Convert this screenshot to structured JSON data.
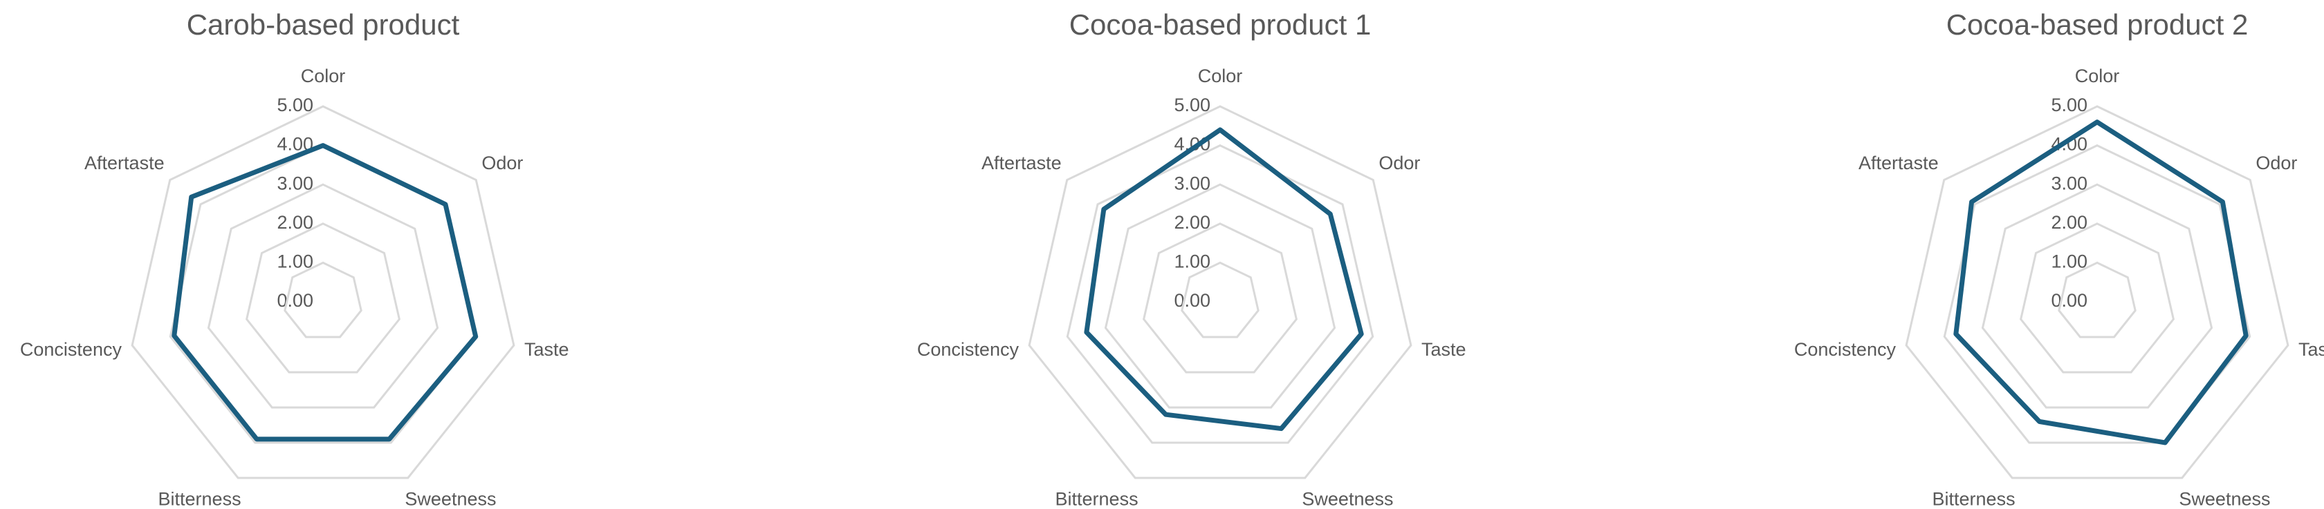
{
  "chart_data": [
    {
      "type": "radar",
      "title": "Carob-based product",
      "categories": [
        "Color",
        "Odor",
        "Taste",
        "Sweetness",
        "Bitterness",
        "Concistency",
        "Aftertaste"
      ],
      "values": [
        4.0,
        4.0,
        4.0,
        3.9,
        3.9,
        3.9,
        4.3
      ],
      "color": "#1b5e80",
      "ylim": [
        0,
        5
      ],
      "yticks": [
        {
          "value": 0,
          "label": "0.00"
        },
        {
          "value": 1,
          "label": "1.00"
        },
        {
          "value": 2,
          "label": "2.00"
        },
        {
          "value": 3,
          "label": "3.00"
        },
        {
          "value": 4,
          "label": "4.00"
        },
        {
          "value": 5,
          "label": "5.00"
        }
      ]
    },
    {
      "type": "radar",
      "title": "Cocoa-based product 1",
      "categories": [
        "Color",
        "Odor",
        "Taste",
        "Sweetness",
        "Bitterness",
        "Concistency",
        "Aftertaste"
      ],
      "values": [
        4.4,
        3.6,
        3.7,
        3.6,
        3.2,
        3.5,
        3.8
      ],
      "color": "#1b5e80",
      "ylim": [
        0,
        5
      ],
      "yticks": [
        {
          "value": 0,
          "label": "0.00"
        },
        {
          "value": 1,
          "label": "1.00"
        },
        {
          "value": 2,
          "label": "2.00"
        },
        {
          "value": 3,
          "label": "3.00"
        },
        {
          "value": 4,
          "label": "4.00"
        },
        {
          "value": 5,
          "label": "5.00"
        }
      ]
    },
    {
      "type": "radar",
      "title": "Cocoa-based product 2",
      "categories": [
        "Color",
        "Odor",
        "Taste",
        "Sweetness",
        "Bitterness",
        "Concistency",
        "Aftertaste"
      ],
      "values": [
        4.6,
        4.1,
        3.9,
        4.0,
        3.4,
        3.7,
        4.1
      ],
      "color": "#1b5e80",
      "ylim": [
        0,
        5
      ],
      "yticks": [
        {
          "value": 0,
          "label": "0.00"
        },
        {
          "value": 1,
          "label": "1.00"
        },
        {
          "value": 2,
          "label": "2.00"
        },
        {
          "value": 3,
          "label": "3.00"
        },
        {
          "value": 4,
          "label": "4.00"
        },
        {
          "value": 5,
          "label": "5.00"
        }
      ]
    }
  ]
}
